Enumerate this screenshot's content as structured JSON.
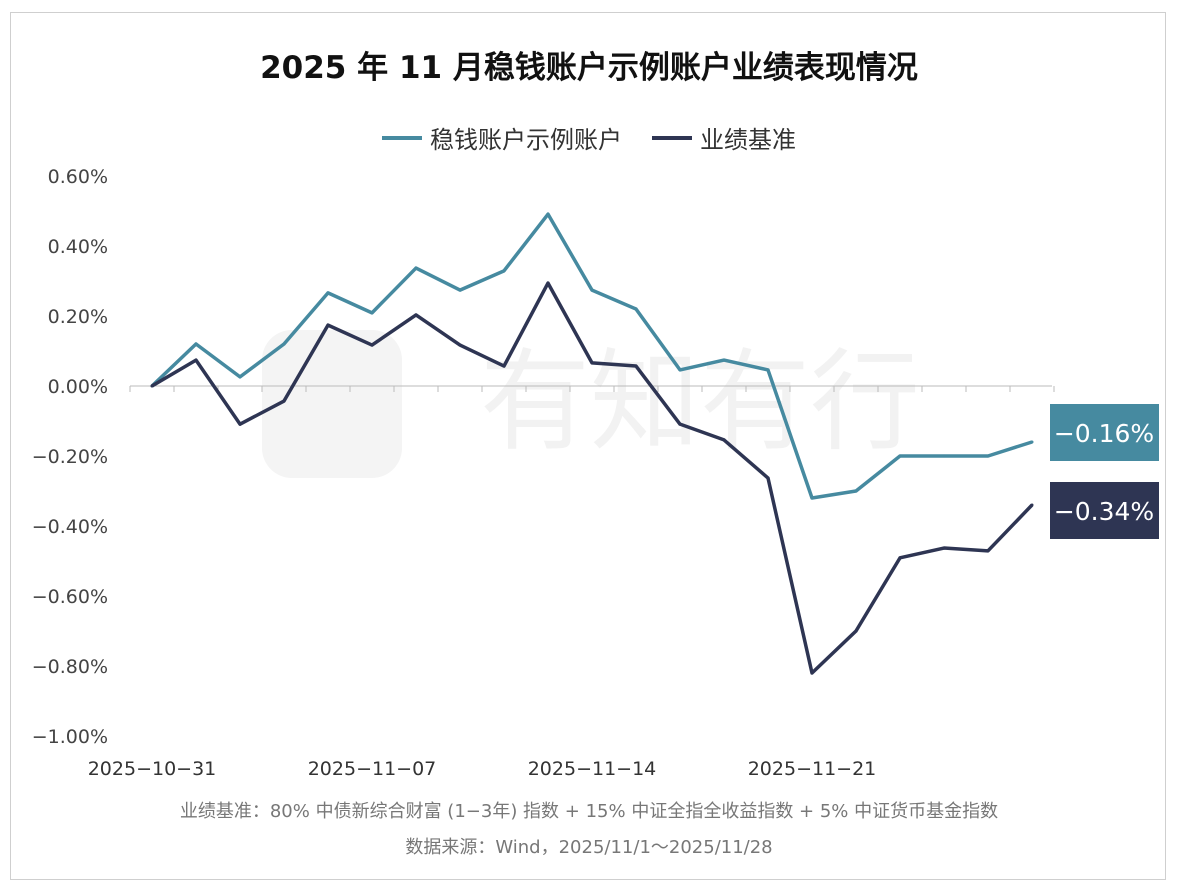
{
  "chart_data": {
    "type": "line",
    "title": "2025 年 11 月稳钱账户示例账户业绩表现情况",
    "x": [
      "2025-10-31",
      "2025-11-03",
      "2025-11-04",
      "2025-11-05",
      "2025-11-06",
      "2025-11-07",
      "2025-11-10",
      "2025-11-11",
      "2025-11-12",
      "2025-11-13",
      "2025-11-14",
      "2025-11-17",
      "2025-11-18",
      "2025-11-19",
      "2025-11-20",
      "2025-11-21",
      "2025-11-24",
      "2025-11-25",
      "2025-11-26",
      "2025-11-27",
      "2025-11-28"
    ],
    "x_tick_labels": [
      "2025-10-31",
      "2025-11-07",
      "2025-11-14",
      "2025-11-21"
    ],
    "x_tick_indices": [
      0,
      5,
      10,
      15
    ],
    "y_tick_labels": [
      "0.60%",
      "0.40%",
      "0.20%",
      "0.00%",
      "-0.20%",
      "-0.40%",
      "-0.60%",
      "-0.80%",
      "-1.00%"
    ],
    "y_ticks": [
      0.6,
      0.4,
      0.2,
      0,
      -0.2,
      -0.4,
      -0.6,
      -0.8,
      -1.0
    ],
    "ylim": [
      -1.0,
      0.6
    ],
    "xlabel": "",
    "ylabel": "",
    "legend_position": "top-center",
    "series": [
      {
        "name": "稳钱账户示例账户",
        "color": "#468aa0",
        "values": [
          0,
          0.12,
          0.026,
          0.12,
          0.266,
          0.209,
          0.337,
          0.274,
          0.329,
          0.491,
          0.274,
          0.22,
          0.046,
          0.074,
          0.046,
          -0.32,
          -0.3,
          -0.2,
          -0.2,
          -0.2,
          -0.16
        ],
        "end_label": "−0.16%"
      },
      {
        "name": "业绩基准",
        "color": "#2e3553",
        "values": [
          0,
          0.074,
          -0.109,
          -0.043,
          0.174,
          0.117,
          0.203,
          0.117,
          0.057,
          0.294,
          0.066,
          0.057,
          -0.109,
          -0.154,
          -0.263,
          -0.82,
          -0.7,
          -0.491,
          -0.463,
          -0.471,
          -0.34
        ],
        "end_label": "−0.34%"
      }
    ],
    "annotations": [
      "业绩基准：80% 中债新综合财富 (1−3年) 指数 + 15% 中证全指全收益指数 + 5% 中证货币基金指数",
      "数据来源：Wind，2025/11/1～2025/11/28"
    ],
    "watermark": "有知有行"
  }
}
